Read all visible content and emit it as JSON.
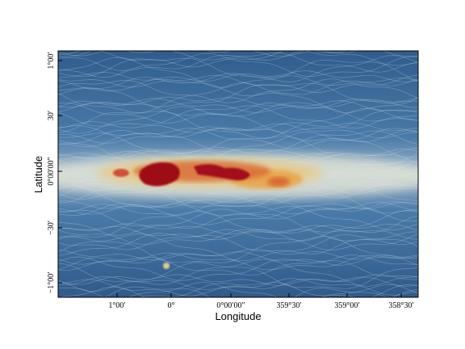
{
  "x_axis": {
    "label": "Longitude",
    "ticks": [
      "1°00′",
      "0°",
      "0°00′00″",
      "359°30′",
      "359°00′",
      "358°30′"
    ]
  },
  "y_axis": {
    "label": "Latitude",
    "ticks": [
      "1°00′",
      "30′",
      "0°00′00″",
      "−30′",
      "−1°00′"
    ]
  }
}
